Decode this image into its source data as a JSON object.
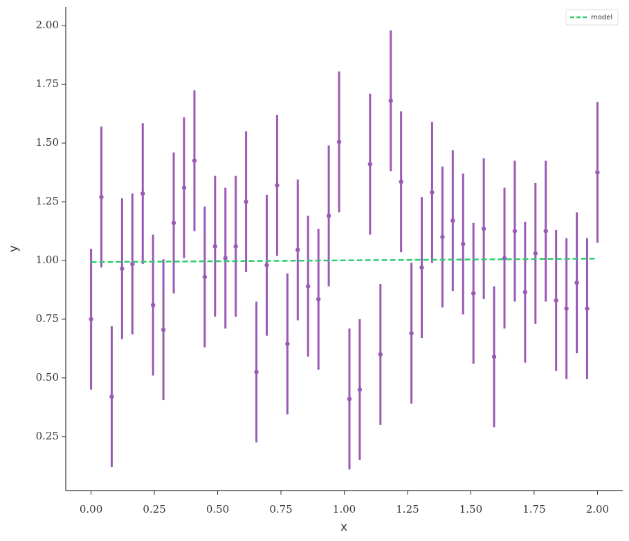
{
  "chart_data": {
    "type": "errorbar",
    "x_label": "x",
    "y_label": "y",
    "xlim": [
      -0.1,
      2.1
    ],
    "ylim": [
      0.02,
      2.08
    ],
    "xticks": [
      {
        "value": 0,
        "label": "0.00"
      },
      0.25,
      {
        "value": 0.5,
        "label": "0.50"
      },
      0.75,
      {
        "value": 1,
        "label": "1.00"
      },
      1.25,
      {
        "value": 1.5,
        "label": "1.50"
      },
      1.75,
      {
        "value": 2,
        "label": "2.00"
      }
    ],
    "yticks": [
      0.25,
      {
        "value": 0.5,
        "label": "0.50"
      },
      0.75,
      {
        "value": 1,
        "label": "1.00"
      },
      1.25,
      {
        "value": 1.5,
        "label": "1.50"
      },
      1.75,
      {
        "value": 2,
        "label": "2.00"
      }
    ],
    "legend": "upper right",
    "points": {
      "color": "#9b59b6",
      "x": [
        0,
        0.0408,
        0.0816,
        0.1224,
        0.1633,
        0.2041,
        0.2449,
        0.2857,
        0.3265,
        0.3673,
        0.4082,
        0.449,
        0.4898,
        0.5306,
        0.5714,
        0.6122,
        0.6531,
        0.6939,
        0.7347,
        0.7755,
        0.8163,
        0.8571,
        0.898,
        0.9388,
        0.9796,
        1.0204,
        1.0612,
        1.102,
        1.1429,
        1.1837,
        1.2245,
        1.2653,
        1.3061,
        1.3469,
        1.3878,
        1.4286,
        1.4694,
        1.5102,
        1.551,
        1.5918,
        1.6327,
        1.6735,
        1.7143,
        1.7551,
        1.7959,
        1.8367,
        1.8776,
        1.9184,
        1.9592,
        2
      ],
      "values": [
        0.75,
        1.27,
        0.42,
        0.965,
        0.985,
        1.285,
        0.81,
        0.705,
        1.16,
        1.31,
        1.425,
        0.93,
        1.06,
        1.01,
        1.06,
        1.25,
        0.525,
        0.98,
        1.32,
        0.645,
        1.045,
        0.89,
        0.835,
        1.19,
        1.505,
        0.41,
        0.45,
        1.41,
        0.6,
        1.68,
        1.335,
        0.69,
        0.97,
        1.29,
        1.1,
        1.17,
        1.07,
        0.86,
        1.135,
        0.59,
        1.01,
        1.125,
        0.865,
        1.03,
        1.125,
        0.83,
        0.795,
        0.905,
        0.795,
        1.375
      ],
      "errors": [
        0.3,
        0.3,
        0.3,
        0.3,
        0.3,
        0.3,
        0.3,
        0.3,
        0.3,
        0.3,
        0.3,
        0.3,
        0.3,
        0.3,
        0.3,
        0.3,
        0.3,
        0.3,
        0.3,
        0.3,
        0.3,
        0.3,
        0.3,
        0.3,
        0.3,
        0.3,
        0.3,
        0.3,
        0.3,
        0.3,
        0.3,
        0.3,
        0.3,
        0.3,
        0.3,
        0.3,
        0.3,
        0.3,
        0.3,
        0.3,
        0.3,
        0.3,
        0.3,
        0.3,
        0.3,
        0.3,
        0.3,
        0.3,
        0.3,
        0.3
      ]
    },
    "series": [
      {
        "name": "model",
        "color": "#2ecc71",
        "dashed": true,
        "x": [
          0,
          2
        ],
        "values": [
          0.993,
          1.008
        ]
      }
    ]
  }
}
